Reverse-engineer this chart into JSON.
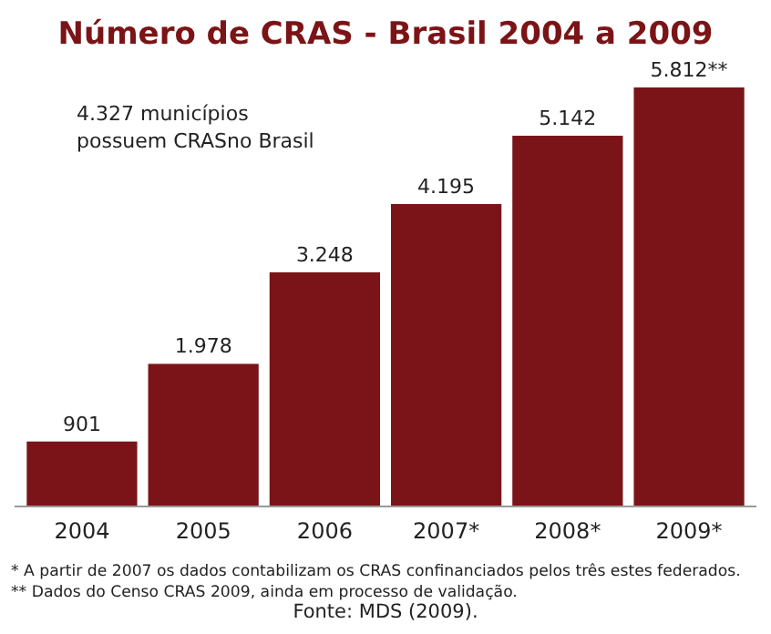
{
  "chart_data": {
    "type": "bar",
    "title": "Número de CRAS - Brasil 2004 a 2009",
    "categories": [
      "2004",
      "2005",
      "2006",
      "2007*",
      "2008*",
      "2009*"
    ],
    "values": [
      901,
      1978,
      3248,
      4195,
      5142,
      5812
    ],
    "value_labels": [
      "901",
      "1.978",
      "3.248",
      "4.195",
      "5.142",
      "5.812**"
    ],
    "color": "#7a1418",
    "annotations": [
      "4.327 municípios possuem CRASno Brasil",
      "* A partir de 2007 os dados contabilizam os CRAS confinanciados pelos três estes federados.",
      "** Dados do Censo CRAS 2009, ainda em processo de validação.",
      "Fonte: MDS (2009)."
    ]
  }
}
